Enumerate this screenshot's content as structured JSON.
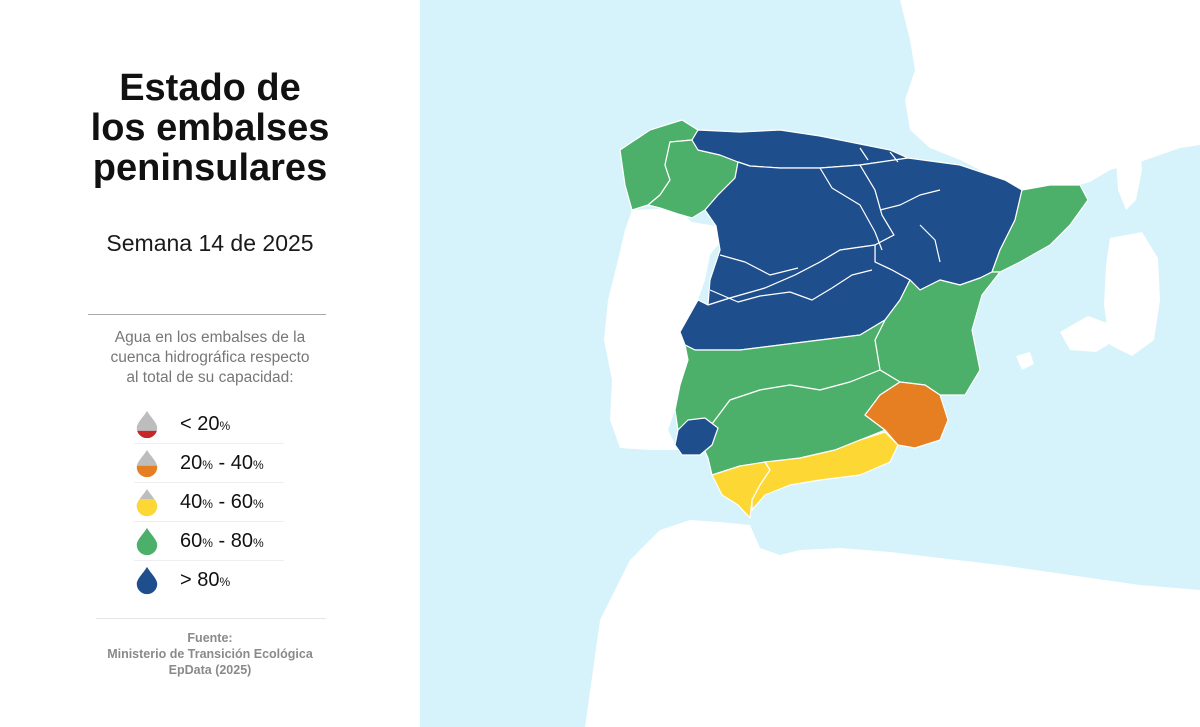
{
  "title_lines": [
    "Estado de",
    "los embalses",
    "peninsulares"
  ],
  "week_label": "Semana 14 de 2025",
  "legend": {
    "description_lines": [
      "Agua en los embalses de la",
      "cuenca hidrográfica respecto",
      "al total de su capacidad:"
    ],
    "items": [
      {
        "label_parts": [
          "< 20",
          "%"
        ],
        "level": "lt20",
        "color": "#c62828"
      },
      {
        "label_parts": [
          "20",
          "%",
          " - 40",
          "%"
        ],
        "level": "20-40",
        "color": "#e67e22"
      },
      {
        "label_parts": [
          "40",
          "%",
          " - 60",
          "%"
        ],
        "level": "40-60",
        "color": "#fdd835"
      },
      {
        "label_parts": [
          "60",
          "%",
          " - 80",
          "%"
        ],
        "level": "60-80",
        "color": "#4caf6a"
      },
      {
        "label_parts": [
          "> 80",
          "%"
        ],
        "level": "gt80",
        "color": "#1f4e8c"
      }
    ]
  },
  "source_lines": [
    "Fuente:",
    "Ministerio de Transición Ecológica",
    "EpData (2025)"
  ],
  "colors": {
    "sea": "#d6f2fa",
    "land": "#ffffff",
    "drop_gray": "#bdbdbd",
    "gt80": "#1f4e8c",
    "60-80": "#4caf6a",
    "40-60": "#fdd835",
    "20-40": "#e67e22"
  },
  "basins": [
    {
      "id": "galicia-costa",
      "level": "60-80"
    },
    {
      "id": "mino-sil",
      "level": "60-80"
    },
    {
      "id": "cantabrico",
      "level": "gt80"
    },
    {
      "id": "duero",
      "level": "gt80"
    },
    {
      "id": "ebro",
      "level": "gt80"
    },
    {
      "id": "cuencas-internas-cataluna",
      "level": "60-80"
    },
    {
      "id": "tajo",
      "level": "gt80"
    },
    {
      "id": "jucar",
      "level": "60-80"
    },
    {
      "id": "guadiana",
      "level": "60-80"
    },
    {
      "id": "guadalquivir",
      "level": "60-80"
    },
    {
      "id": "tinto-odiel-piedras",
      "level": "gt80"
    },
    {
      "id": "guadalete-barbate",
      "level": "40-60"
    },
    {
      "id": "mediterranea-andaluza",
      "level": "40-60"
    },
    {
      "id": "segura",
      "level": "20-40"
    }
  ]
}
